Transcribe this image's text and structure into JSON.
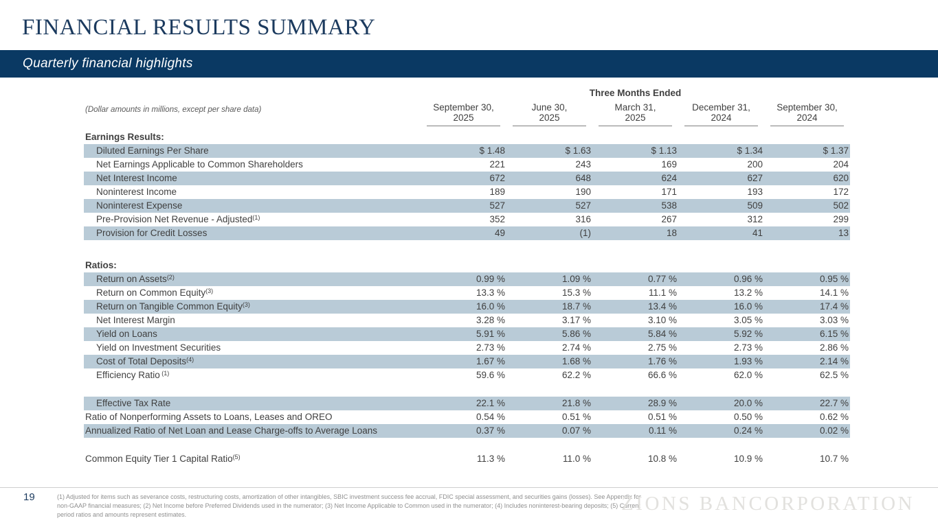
{
  "slide": {
    "title": "FINANCIAL RESULTS SUMMARY",
    "subtitle": "Quarterly financial highlights",
    "page_number": "19",
    "logo_text": "ZIONS BANCORPORATION",
    "footnote": "(1) Adjusted for items such as severance costs, restructuring costs, amortization of other intangibles, SBIC investment success fee accrual, FDIC special assessment, and securities gains (losses). See Appendix for non-GAAP financial measures; (2) Net Income before Preferred Dividends used in the numerator; (3) Net Income Applicable to Common used in the numerator; (4) Includes noninterest-bearing deposits; (5) Current period ratios and amounts represent estimates.",
    "colors": {
      "navy": "#0a3963",
      "title_navy": "#1b3a5e",
      "row_highlight": "#b9cbd7"
    }
  },
  "table": {
    "note": "(Dollar amounts in millions, except per share data)",
    "group_header": "Three Months Ended",
    "columns": [
      {
        "line1": "September 30,",
        "line2": "2025"
      },
      {
        "line1": "June 30,",
        "line2": "2025"
      },
      {
        "line1": "March 31,",
        "line2": "2025"
      },
      {
        "line1": "December 31,",
        "line2": "2024"
      },
      {
        "line1": "September 30,",
        "line2": "2024"
      }
    ],
    "sections": [
      {
        "heading": "Earnings Results:",
        "rows": [
          {
            "label": "Diluted Earnings Per Share",
            "sup": "",
            "indent": true,
            "highlight": true,
            "values": [
              "$ 1.48",
              "$ 1.63",
              "$ 1.13",
              "$ 1.34",
              "$ 1.37"
            ]
          },
          {
            "label": "Net Earnings Applicable to Common Shareholders",
            "sup": "",
            "indent": true,
            "highlight": false,
            "values": [
              "221",
              "243",
              "169",
              "200",
              "204"
            ]
          },
          {
            "label": "Net Interest Income",
            "sup": "",
            "indent": true,
            "highlight": true,
            "values": [
              "672",
              "648",
              "624",
              "627",
              "620"
            ]
          },
          {
            "label": "Noninterest Income",
            "sup": "",
            "indent": true,
            "highlight": false,
            "values": [
              "189",
              "190",
              "171",
              "193",
              "172"
            ]
          },
          {
            "label": "Noninterest Expense",
            "sup": "",
            "indent": true,
            "highlight": true,
            "values": [
              "527",
              "527",
              "538",
              "509",
              "502"
            ]
          },
          {
            "label": "Pre-Provision Net Revenue - Adjusted",
            "sup": "(1)",
            "indent": true,
            "highlight": false,
            "values": [
              "352",
              "316",
              "267",
              "312",
              "299"
            ]
          },
          {
            "label": "Provision for Credit Losses",
            "sup": "",
            "indent": true,
            "highlight": true,
            "values": [
              "49",
              "(1)",
              "18",
              "41",
              "13"
            ]
          }
        ]
      },
      {
        "heading": "Ratios:",
        "rows": [
          {
            "label": "Return on Assets",
            "sup": "(2)",
            "indent": true,
            "highlight": true,
            "values": [
              "0.99 %",
              "1.09 %",
              "0.77 %",
              "0.96 %",
              "0.95 %"
            ]
          },
          {
            "label": "Return on Common Equity",
            "sup": "(3)",
            "indent": true,
            "highlight": false,
            "values": [
              "13.3 %",
              "15.3 %",
              "11.1 %",
              "13.2 %",
              "14.1 %"
            ]
          },
          {
            "label": "Return on Tangible Common Equity",
            "sup": "(3)",
            "indent": true,
            "highlight": true,
            "values": [
              "16.0 %",
              "18.7 %",
              "13.4 %",
              "16.0 %",
              "17.4 %"
            ]
          },
          {
            "label": "Net Interest Margin",
            "sup": "",
            "indent": true,
            "highlight": false,
            "values": [
              "3.28 %",
              "3.17 %",
              "3.10 %",
              "3.05 %",
              "3.03 %"
            ]
          },
          {
            "label": "Yield on Loans",
            "sup": "",
            "indent": true,
            "highlight": true,
            "values": [
              "5.91 %",
              "5.86 %",
              "5.84 %",
              "5.92 %",
              "6.15 %"
            ]
          },
          {
            "label": "Yield on Investment Securities",
            "sup": "",
            "indent": true,
            "highlight": false,
            "values": [
              "2.73 %",
              "2.74 %",
              "2.75 %",
              "2.73 %",
              "2.86 %"
            ]
          },
          {
            "label": "Cost of Total Deposits",
            "sup": "(4)",
            "indent": true,
            "highlight": true,
            "values": [
              "1.67 %",
              "1.68 %",
              "1.76 %",
              "1.93 %",
              "2.14 %"
            ]
          },
          {
            "label": "Efficiency Ratio",
            "sup": " (1)",
            "indent": true,
            "highlight": false,
            "values": [
              "59.6 %",
              "62.2 %",
              "66.6 %",
              "62.0 %",
              "62.5 %"
            ]
          }
        ]
      },
      {
        "heading": null,
        "rows": [
          {
            "label": "Effective Tax Rate",
            "sup": "",
            "indent": true,
            "highlight": true,
            "values": [
              "22.1 %",
              "21.8 %",
              "28.9 %",
              "20.0 %",
              "22.7 %"
            ]
          },
          {
            "label": "Ratio of Nonperforming Assets to Loans, Leases and OREO",
            "sup": "",
            "indent": false,
            "highlight": false,
            "values": [
              "0.54 %",
              "0.51 %",
              "0.51 %",
              "0.50 %",
              "0.62 %"
            ]
          },
          {
            "label": "Annualized Ratio of Net Loan and Lease Charge-offs to Average Loans",
            "sup": "",
            "indent": false,
            "highlight": true,
            "values": [
              "0.37 %",
              "0.07 %",
              "0.11 %",
              "0.24 %",
              "0.02 %"
            ]
          }
        ]
      },
      {
        "heading": null,
        "rows": [
          {
            "label": "Common Equity Tier 1 Capital Ratio",
            "sup": "(5)",
            "indent": false,
            "highlight": false,
            "values": [
              "11.3 %",
              "11.0 %",
              "10.8 %",
              "10.9 %",
              "10.7 %"
            ]
          }
        ]
      }
    ]
  }
}
